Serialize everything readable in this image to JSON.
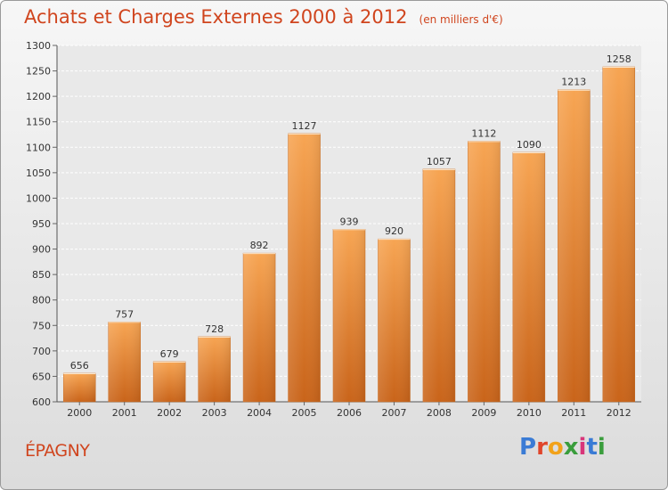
{
  "chart_data": {
    "type": "bar",
    "title": "Achats et Charges Externes 2000 à 2012",
    "subtitle": "(en milliers d'€)",
    "categories": [
      "2000",
      "2001",
      "2002",
      "2003",
      "2004",
      "2005",
      "2006",
      "2007",
      "2008",
      "2009",
      "2010",
      "2011",
      "2012"
    ],
    "values": [
      656,
      757,
      679,
      728,
      892,
      1127,
      939,
      920,
      1057,
      1112,
      1090,
      1213,
      1258
    ],
    "ylim": [
      600,
      1300
    ],
    "yticks": [
      600,
      650,
      700,
      750,
      800,
      850,
      900,
      950,
      1000,
      1050,
      1100,
      1150,
      1200,
      1250,
      1300
    ],
    "grid": true,
    "bar_color": "#f0923a"
  },
  "commune": "ÉPAGNY",
  "brand": {
    "text": "Proxiti",
    "colors": [
      "#3a7bd5",
      "#e0452a",
      "#f2a21a",
      "#3a9d3c",
      "#d8367a",
      "#3a7bd5",
      "#3a9d3c"
    ]
  }
}
